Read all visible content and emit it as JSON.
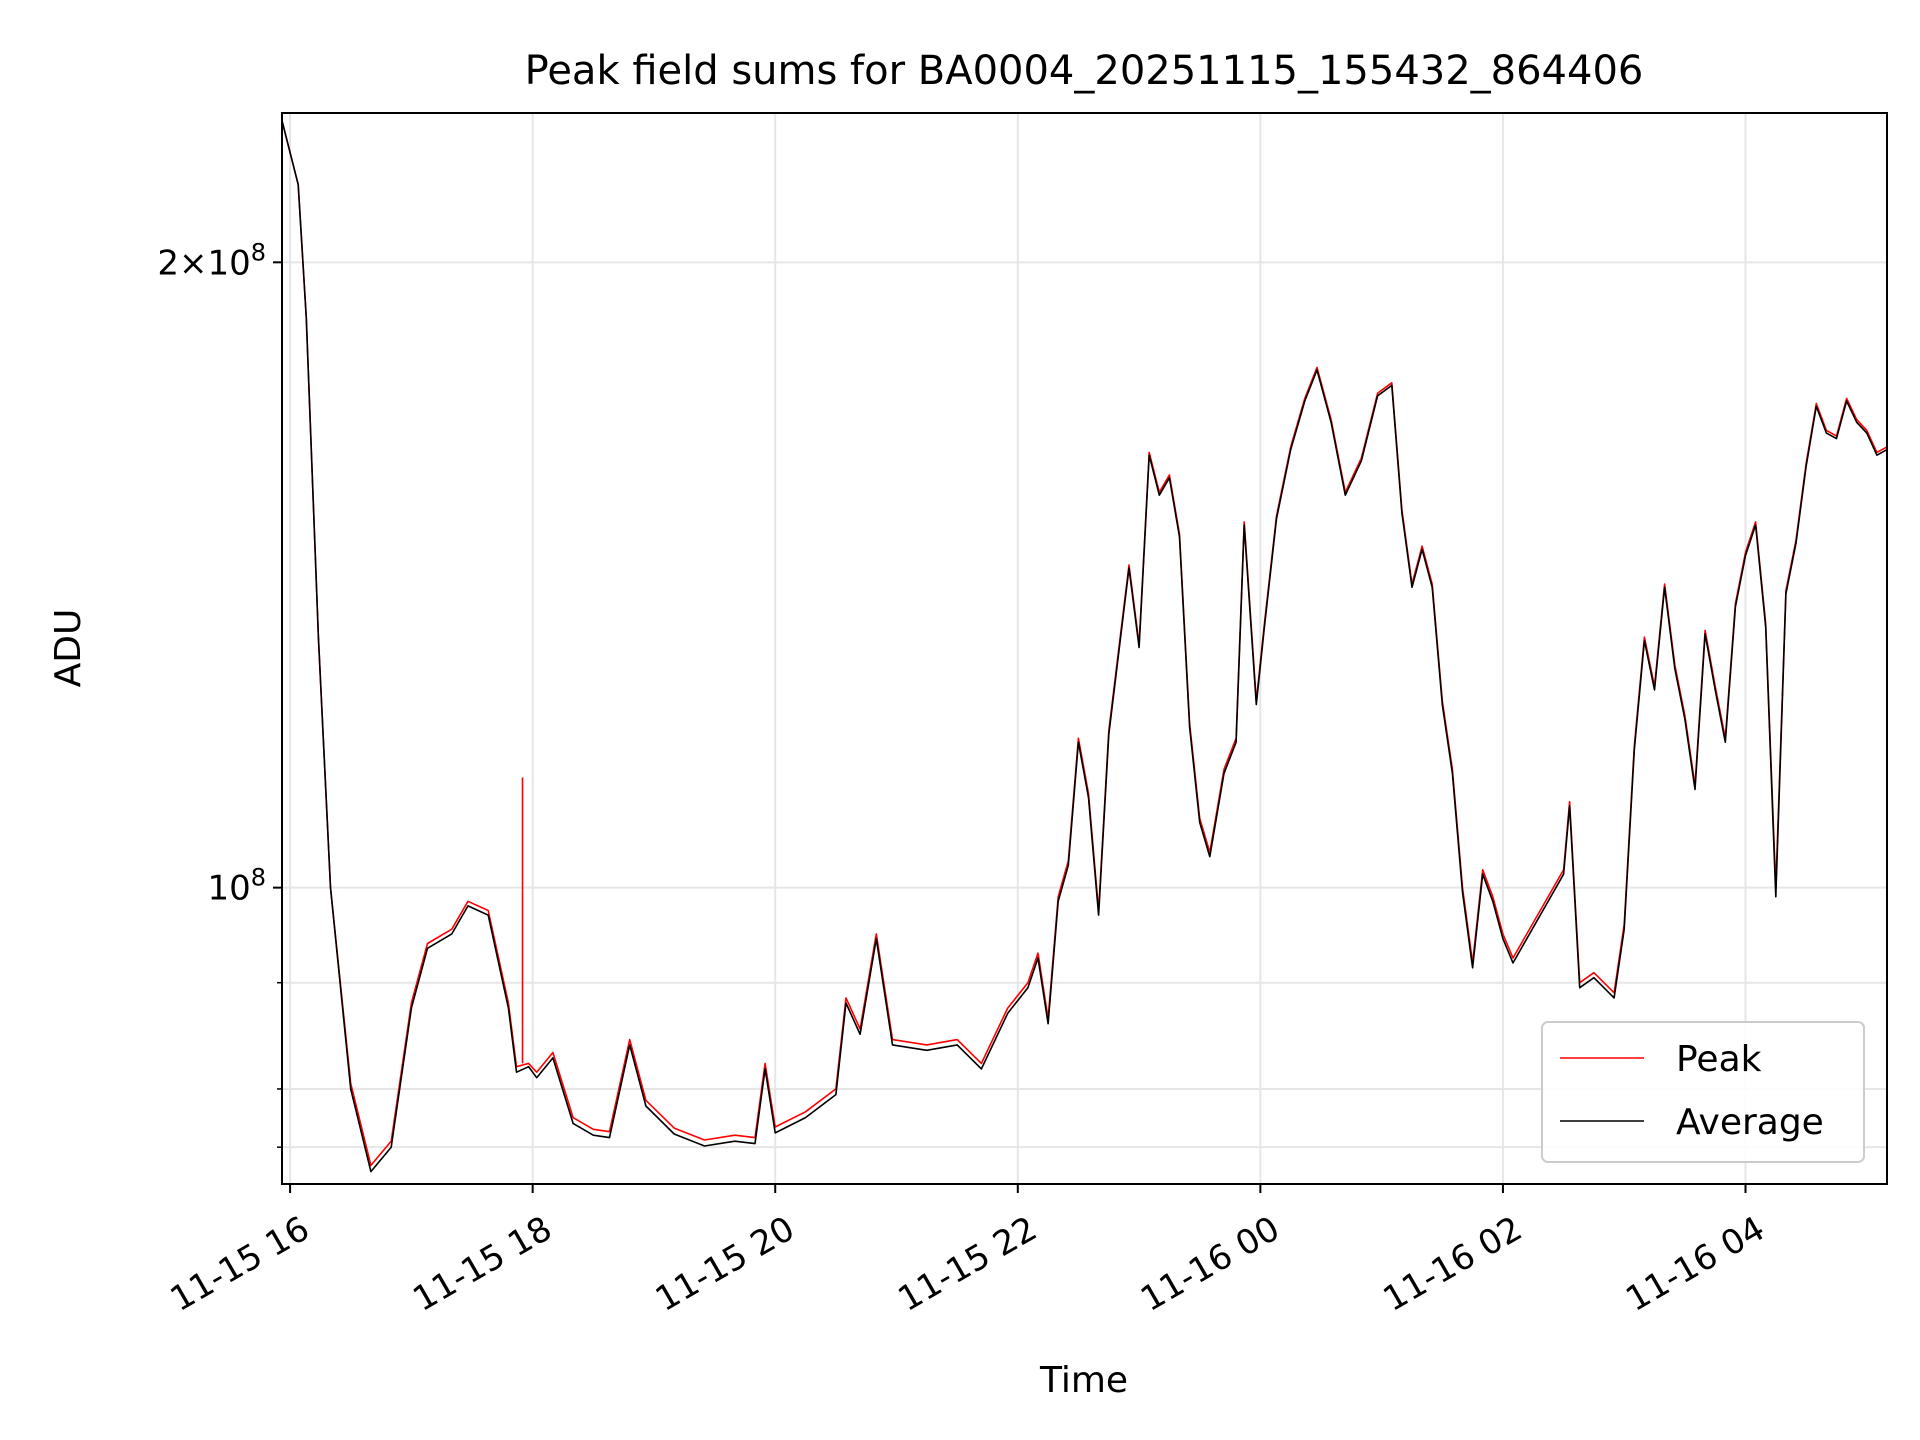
{
  "chart_data": {
    "type": "line",
    "title": "Peak field sums for BA0004_20251115_155432_864406",
    "xlabel": "Time",
    "ylabel": "ADU",
    "y_scale": "log",
    "ylim": [
      72000000,
      236000000
    ],
    "xlim": [
      "2025-11-15 15:56",
      "2025-11-16 05:10"
    ],
    "grid": true,
    "legend_position": "lower-right",
    "x_ticks": [
      {
        "value": "2025-11-15 16:00",
        "label": "11-15 16"
      },
      {
        "value": "2025-11-15 18:00",
        "label": "11-15 18"
      },
      {
        "value": "2025-11-15 20:00",
        "label": "11-15 20"
      },
      {
        "value": "2025-11-15 22:00",
        "label": "11-15 22"
      },
      {
        "value": "2025-11-16 00:00",
        "label": "11-16 00"
      },
      {
        "value": "2025-11-16 02:00",
        "label": "11-16 02"
      },
      {
        "value": "2025-11-16 04:00",
        "label": "11-16 04"
      }
    ],
    "y_ticks_major": [
      {
        "value": 100000000,
        "base": "10",
        "exp": "8",
        "coef": ""
      },
      {
        "value": 200000000,
        "base": "10",
        "exp": "8",
        "coef": "2×"
      }
    ],
    "y_ticks_minor": [
      75000000,
      80000000,
      90000000
    ],
    "series": [
      {
        "name": "Peak",
        "color": "#ff0000",
        "values": [
          [
            "2025-11-15 15:56",
            234000000
          ],
          [
            "2025-11-15 16:04",
            218000000
          ],
          [
            "2025-11-15 16:08",
            188000000
          ],
          [
            "2025-11-15 16:14",
            132000000
          ],
          [
            "2025-11-15 16:20",
            100000000
          ],
          [
            "2025-11-15 16:30",
            80500000
          ],
          [
            "2025-11-15 16:40",
            73500000
          ],
          [
            "2025-11-15 16:50",
            75500000
          ],
          [
            "2025-11-15 17:00",
            88000000
          ],
          [
            "2025-11-15 17:08",
            94000000
          ],
          [
            "2025-11-15 17:20",
            95500000
          ],
          [
            "2025-11-15 17:28",
            98500000
          ],
          [
            "2025-11-15 17:38",
            97500000
          ],
          [
            "2025-11-15 17:48",
            88000000
          ],
          [
            "2025-11-15 17:52",
            82000000
          ],
          [
            "2025-11-15 17:58",
            82300000
          ],
          [
            "2025-11-15 18:02",
            81500000
          ],
          [
            "2025-11-15 18:10",
            83300000
          ],
          [
            "2025-11-15 18:20",
            77500000
          ],
          [
            "2025-11-15 18:30",
            76500000
          ],
          [
            "2025-11-15 18:38",
            76300000
          ],
          [
            "2025-11-15 18:48",
            84500000
          ],
          [
            "2025-11-15 18:56",
            79000000
          ],
          [
            "2025-11-15 19:10",
            76600000
          ],
          [
            "2025-11-15 19:25",
            75600000
          ],
          [
            "2025-11-15 19:40",
            76000000
          ],
          [
            "2025-11-15 19:50",
            75800000
          ],
          [
            "2025-11-15 19:55",
            82300000
          ],
          [
            "2025-11-15 20:00",
            76700000
          ],
          [
            "2025-11-15 20:15",
            78000000
          ],
          [
            "2025-11-15 20:30",
            80000000
          ],
          [
            "2025-11-15 20:35",
            88500000
          ],
          [
            "2025-11-15 20:42",
            85500000
          ],
          [
            "2025-11-15 20:50",
            95000000
          ],
          [
            "2025-11-15 20:58",
            84500000
          ],
          [
            "2025-11-15 21:15",
            84000000
          ],
          [
            "2025-11-15 21:30",
            84500000
          ],
          [
            "2025-11-15 21:42",
            82300000
          ],
          [
            "2025-11-15 21:55",
            87500000
          ],
          [
            "2025-11-15 22:05",
            90000000
          ],
          [
            "2025-11-15 22:10",
            93000000
          ],
          [
            "2025-11-15 22:15",
            86500000
          ],
          [
            "2025-11-15 22:20",
            99000000
          ],
          [
            "2025-11-15 22:25",
            103000000
          ],
          [
            "2025-11-15 22:30",
            118000000
          ],
          [
            "2025-11-15 22:35",
            111000000
          ],
          [
            "2025-11-15 22:40",
            97500000
          ],
          [
            "2025-11-15 22:45",
            119000000
          ],
          [
            "2025-11-15 22:55",
            143000000
          ],
          [
            "2025-11-15 23:00",
            131000000
          ],
          [
            "2025-11-15 23:05",
            162000000
          ],
          [
            "2025-11-15 23:10",
            155000000
          ],
          [
            "2025-11-15 23:15",
            158000000
          ],
          [
            "2025-11-15 23:20",
            148000000
          ],
          [
            "2025-11-15 23:25",
            120000000
          ],
          [
            "2025-11-15 23:30",
            108000000
          ],
          [
            "2025-11-15 23:35",
            104000000
          ],
          [
            "2025-11-15 23:42",
            114000000
          ],
          [
            "2025-11-15 23:48",
            118000000
          ],
          [
            "2025-11-15 23:52",
            150000000
          ],
          [
            "2025-11-15 23:58",
            123000000
          ],
          [
            "2025-11-16 00:02",
            134000000
          ],
          [
            "2025-11-16 00:08",
            151000000
          ],
          [
            "2025-11-16 00:15",
            163000000
          ],
          [
            "2025-11-16 00:22",
            172000000
          ],
          [
            "2025-11-16 00:28",
            178000000
          ],
          [
            "2025-11-16 00:35",
            168000000
          ],
          [
            "2025-11-16 00:42",
            155000000
          ],
          [
            "2025-11-16 00:50",
            161000000
          ],
          [
            "2025-11-16 00:58",
            173000000
          ],
          [
            "2025-11-16 01:05",
            175000000
          ],
          [
            "2025-11-16 01:10",
            152000000
          ],
          [
            "2025-11-16 01:15",
            140000000
          ],
          [
            "2025-11-16 01:20",
            146000000
          ],
          [
            "2025-11-16 01:25",
            140000000
          ],
          [
            "2025-11-16 01:30",
            123000000
          ],
          [
            "2025-11-16 01:35",
            114000000
          ],
          [
            "2025-11-16 01:40",
            100000000
          ],
          [
            "2025-11-16 01:45",
            92000000
          ],
          [
            "2025-11-16 01:50",
            102000000
          ],
          [
            "2025-11-16 01:55",
            99000000
          ],
          [
            "2025-11-16 02:00",
            95000000
          ],
          [
            "2025-11-16 02:05",
            92500000
          ],
          [
            "2025-11-16 02:30",
            102000000
          ],
          [
            "2025-11-16 02:33",
            110000000
          ],
          [
            "2025-11-16 02:38",
            90000000
          ],
          [
            "2025-11-16 02:45",
            91000000
          ],
          [
            "2025-11-16 02:55",
            89000000
          ],
          [
            "2025-11-16 03:00",
            96000000
          ],
          [
            "2025-11-16 03:05",
            117000000
          ],
          [
            "2025-11-16 03:10",
            132000000
          ],
          [
            "2025-11-16 03:15",
            125000000
          ],
          [
            "2025-11-16 03:20",
            140000000
          ],
          [
            "2025-11-16 03:25",
            128000000
          ],
          [
            "2025-11-16 03:30",
            121000000
          ],
          [
            "2025-11-16 03:35",
            112000000
          ],
          [
            "2025-11-16 03:40",
            133000000
          ],
          [
            "2025-11-16 03:45",
            125000000
          ],
          [
            "2025-11-16 03:50",
            118000000
          ],
          [
            "2025-11-16 03:55",
            137000000
          ],
          [
            "2025-11-16 04:00",
            145000000
          ],
          [
            "2025-11-16 04:05",
            150000000
          ],
          [
            "2025-11-16 04:10",
            134000000
          ],
          [
            "2025-11-16 04:15",
            100000000
          ],
          [
            "2025-11-16 04:20",
            139000000
          ],
          [
            "2025-11-16 04:25",
            147000000
          ],
          [
            "2025-11-16 04:30",
            160000000
          ],
          [
            "2025-11-16 04:35",
            171000000
          ],
          [
            "2025-11-16 04:40",
            166000000
          ],
          [
            "2025-11-16 04:45",
            165000000
          ],
          [
            "2025-11-16 04:50",
            172000000
          ],
          [
            "2025-11-16 04:55",
            168000000
          ],
          [
            "2025-11-16 05:00",
            166000000
          ],
          [
            "2025-11-16 05:05",
            162000000
          ],
          [
            "2025-11-16 05:10",
            163000000
          ]
        ]
      },
      {
        "name": "Average",
        "color": "#000000",
        "values": [
          [
            "2025-11-15 15:56",
            234000000
          ],
          [
            "2025-11-15 16:04",
            218000000
          ],
          [
            "2025-11-15 16:08",
            188000000
          ],
          [
            "2025-11-15 16:14",
            132000000
          ],
          [
            "2025-11-15 16:20",
            100000000
          ],
          [
            "2025-11-15 16:30",
            80000000
          ],
          [
            "2025-11-15 16:40",
            73000000
          ],
          [
            "2025-11-15 16:50",
            75000000
          ],
          [
            "2025-11-15 17:00",
            87500000
          ],
          [
            "2025-11-15 17:08",
            93500000
          ],
          [
            "2025-11-15 17:20",
            95000000
          ],
          [
            "2025-11-15 17:28",
            98000000
          ],
          [
            "2025-11-15 17:38",
            97000000
          ],
          [
            "2025-11-15 17:48",
            87500000
          ],
          [
            "2025-11-15 17:52",
            81500000
          ],
          [
            "2025-11-15 17:58",
            82000000
          ],
          [
            "2025-11-15 18:02",
            81000000
          ],
          [
            "2025-11-15 18:10",
            82800000
          ],
          [
            "2025-11-15 18:20",
            77000000
          ],
          [
            "2025-11-15 18:30",
            76000000
          ],
          [
            "2025-11-15 18:38",
            75800000
          ],
          [
            "2025-11-15 18:48",
            84000000
          ],
          [
            "2025-11-15 18:56",
            78500000
          ],
          [
            "2025-11-15 19:10",
            76100000
          ],
          [
            "2025-11-15 19:25",
            75100000
          ],
          [
            "2025-11-15 19:40",
            75500000
          ],
          [
            "2025-11-15 19:50",
            75300000
          ],
          [
            "2025-11-15 19:55",
            81800000
          ],
          [
            "2025-11-15 20:00",
            76200000
          ],
          [
            "2025-11-15 20:15",
            77500000
          ],
          [
            "2025-11-15 20:30",
            79500000
          ],
          [
            "2025-11-15 20:35",
            88000000
          ],
          [
            "2025-11-15 20:42",
            85000000
          ],
          [
            "2025-11-15 20:50",
            94500000
          ],
          [
            "2025-11-15 20:58",
            84000000
          ],
          [
            "2025-11-15 21:15",
            83500000
          ],
          [
            "2025-11-15 21:30",
            84000000
          ],
          [
            "2025-11-15 21:42",
            81800000
          ],
          [
            "2025-11-15 21:55",
            87000000
          ],
          [
            "2025-11-15 22:05",
            89500000
          ],
          [
            "2025-11-15 22:10",
            92500000
          ],
          [
            "2025-11-15 22:15",
            86000000
          ],
          [
            "2025-11-15 22:20",
            98500000
          ],
          [
            "2025-11-15 22:25",
            102500000
          ],
          [
            "2025-11-15 22:30",
            117500000
          ],
          [
            "2025-11-15 22:35",
            110500000
          ],
          [
            "2025-11-15 22:40",
            97000000
          ],
          [
            "2025-11-15 22:45",
            118500000
          ],
          [
            "2025-11-15 22:55",
            142500000
          ],
          [
            "2025-11-15 23:00",
            130500000
          ],
          [
            "2025-11-15 23:05",
            161500000
          ],
          [
            "2025-11-15 23:10",
            154500000
          ],
          [
            "2025-11-15 23:15",
            157500000
          ],
          [
            "2025-11-15 23:20",
            147500000
          ],
          [
            "2025-11-15 23:25",
            119500000
          ],
          [
            "2025-11-15 23:30",
            107500000
          ],
          [
            "2025-11-15 23:35",
            103500000
          ],
          [
            "2025-11-15 23:42",
            113500000
          ],
          [
            "2025-11-15 23:48",
            117500000
          ],
          [
            "2025-11-15 23:52",
            149500000
          ],
          [
            "2025-11-15 23:58",
            122500000
          ],
          [
            "2025-11-16 00:02",
            133500000
          ],
          [
            "2025-11-16 00:08",
            150500000
          ],
          [
            "2025-11-16 00:15",
            162500000
          ],
          [
            "2025-11-16 00:22",
            171500000
          ],
          [
            "2025-11-16 00:28",
            177500000
          ],
          [
            "2025-11-16 00:35",
            167500000
          ],
          [
            "2025-11-16 00:42",
            154500000
          ],
          [
            "2025-11-16 00:50",
            160500000
          ],
          [
            "2025-11-16 00:58",
            172500000
          ],
          [
            "2025-11-16 01:05",
            174500000
          ],
          [
            "2025-11-16 01:10",
            151500000
          ],
          [
            "2025-11-16 01:15",
            139500000
          ],
          [
            "2025-11-16 01:20",
            145500000
          ],
          [
            "2025-11-16 01:25",
            139500000
          ],
          [
            "2025-11-16 01:30",
            122500000
          ],
          [
            "2025-11-16 01:35",
            113500000
          ],
          [
            "2025-11-16 01:40",
            99500000
          ],
          [
            "2025-11-16 01:45",
            91500000
          ],
          [
            "2025-11-16 01:50",
            101500000
          ],
          [
            "2025-11-16 01:55",
            98500000
          ],
          [
            "2025-11-16 02:00",
            94500000
          ],
          [
            "2025-11-16 02:05",
            92000000
          ],
          [
            "2025-11-16 02:30",
            101500000
          ],
          [
            "2025-11-16 02:33",
            109500000
          ],
          [
            "2025-11-16 02:38",
            89500000
          ],
          [
            "2025-11-16 02:45",
            90500000
          ],
          [
            "2025-11-16 02:55",
            88500000
          ],
          [
            "2025-11-16 03:00",
            95500000
          ],
          [
            "2025-11-16 03:05",
            116500000
          ],
          [
            "2025-11-16 03:10",
            131500000
          ],
          [
            "2025-11-16 03:15",
            124500000
          ],
          [
            "2025-11-16 03:20",
            139500000
          ],
          [
            "2025-11-16 03:25",
            127500000
          ],
          [
            "2025-11-16 03:30",
            120500000
          ],
          [
            "2025-11-16 03:35",
            111500000
          ],
          [
            "2025-11-16 03:40",
            132500000
          ],
          [
            "2025-11-16 03:45",
            124500000
          ],
          [
            "2025-11-16 03:50",
            117500000
          ],
          [
            "2025-11-16 03:55",
            136500000
          ],
          [
            "2025-11-16 04:00",
            144500000
          ],
          [
            "2025-11-16 04:05",
            149500000
          ],
          [
            "2025-11-16 04:10",
            133500000
          ],
          [
            "2025-11-16 04:15",
            99000000
          ],
          [
            "2025-11-16 04:20",
            138500000
          ],
          [
            "2025-11-16 04:25",
            146500000
          ],
          [
            "2025-11-16 04:30",
            159500000
          ],
          [
            "2025-11-16 04:35",
            170500000
          ],
          [
            "2025-11-16 04:40",
            165500000
          ],
          [
            "2025-11-16 04:45",
            164500000
          ],
          [
            "2025-11-16 04:50",
            171500000
          ],
          [
            "2025-11-16 04:55",
            167500000
          ],
          [
            "2025-11-16 05:00",
            165500000
          ],
          [
            "2025-11-16 05:05",
            161500000
          ],
          [
            "2025-11-16 05:10",
            162500000
          ]
        ]
      }
    ],
    "annotations": [
      {
        "type": "spike",
        "series": "Peak",
        "x": "2025-11-15 17:55",
        "y": 113000000
      }
    ],
    "legend": [
      {
        "label": "Peak",
        "color": "#ff0000"
      },
      {
        "label": "Average",
        "color": "#000000"
      }
    ]
  }
}
